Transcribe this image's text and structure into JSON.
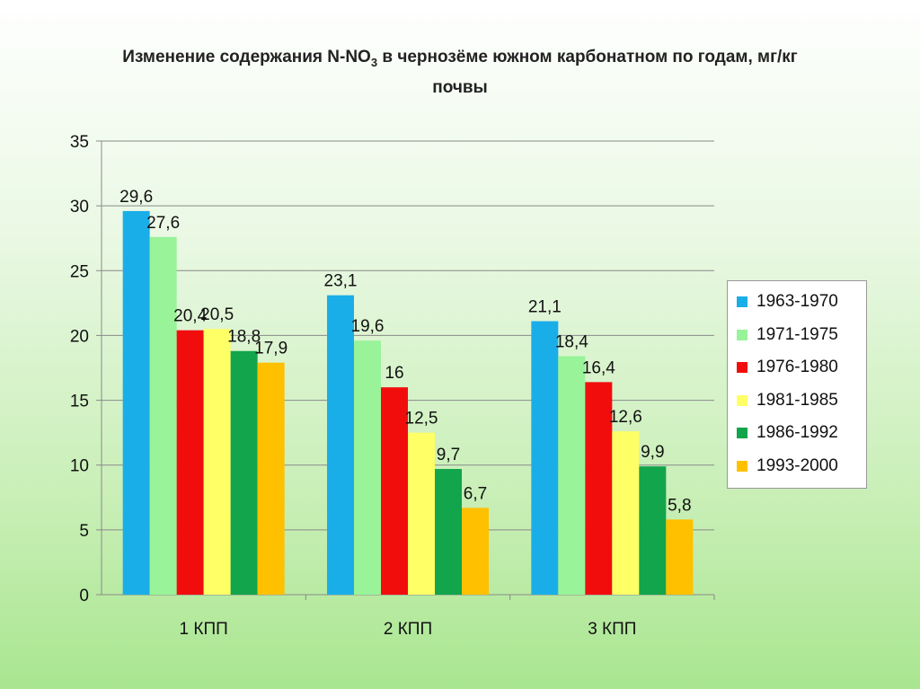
{
  "title": {
    "prefix": "Изменение содержания N-NO",
    "sub": "3",
    "rest": " в чернозёме южном карбонатном по годам, мг/кг",
    "line2": "почвы"
  },
  "chart_data": {
    "type": "bar",
    "categories": [
      "1 КПП",
      "2 КПП",
      "3 КПП"
    ],
    "ylim": [
      0,
      35
    ],
    "yticks": [
      0,
      5,
      10,
      15,
      20,
      25,
      30,
      35
    ],
    "grid": true,
    "legend_position": "right",
    "series": [
      {
        "name": "1963-1970",
        "color": "#1aaee8",
        "values": [
          29.6,
          23.1,
          21.1
        ],
        "labels": [
          "29,6",
          "23,1",
          "21,1"
        ]
      },
      {
        "name": "1971-1975",
        "color": "#99f399",
        "values": [
          27.6,
          19.6,
          18.4
        ],
        "labels": [
          "27,6",
          "19,6",
          "18,4"
        ]
      },
      {
        "name": "1976-1980",
        "color": "#f20d0d",
        "values": [
          20.4,
          16,
          16.4
        ],
        "labels": [
          "20,4",
          "16",
          "16,4"
        ]
      },
      {
        "name": "1981-1985",
        "color": "#ffff66",
        "values": [
          20.5,
          12.5,
          12.6
        ],
        "labels": [
          "20,5",
          "12,5",
          "12,6"
        ]
      },
      {
        "name": "1986-1992",
        "color": "#13a54b",
        "values": [
          18.8,
          9.7,
          9.9
        ],
        "labels": [
          "18,8",
          "9,7",
          "9,9"
        ]
      },
      {
        "name": "1993-2000",
        "color": "#ffc000",
        "values": [
          17.9,
          6.7,
          5.8
        ],
        "labels": [
          "17,9",
          "6,7",
          "5,8"
        ]
      }
    ]
  }
}
